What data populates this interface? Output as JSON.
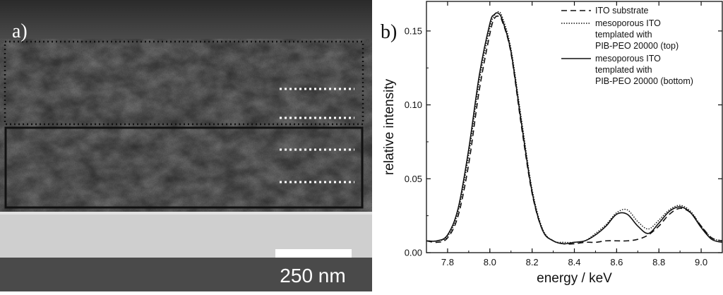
{
  "panel_a": {
    "label": "a)",
    "scale_bar_label": "250 nm"
  },
  "panel_b": {
    "label": "b)"
  },
  "chart_data": {
    "type": "line",
    "xlabel": "energy / keV",
    "ylabel": "relative intensity",
    "xlim": [
      7.7,
      9.1
    ],
    "ylim": [
      0.0,
      0.17
    ],
    "xticks": [
      "7.8",
      "8.0",
      "8.2",
      "8.4",
      "8.6",
      "8.8",
      "9.0"
    ],
    "yticks": [
      "0.00",
      "0.05",
      "0.10",
      "0.15"
    ],
    "legend_position": "top-right",
    "series": [
      {
        "name": "ITO substrate",
        "style": "dashed",
        "x": [
          7.7,
          7.75,
          7.8,
          7.85,
          7.9,
          7.95,
          8.0,
          8.02,
          8.04,
          8.06,
          8.1,
          8.15,
          8.2,
          8.25,
          8.3,
          8.35,
          8.4,
          8.45,
          8.5,
          8.55,
          8.6,
          8.65,
          8.7,
          8.75,
          8.8,
          8.85,
          8.9,
          8.95,
          9.0,
          9.05,
          9.1
        ],
        "y": [
          0.008,
          0.007,
          0.01,
          0.025,
          0.06,
          0.11,
          0.148,
          0.158,
          0.16,
          0.156,
          0.135,
          0.085,
          0.04,
          0.015,
          0.008,
          0.006,
          0.006,
          0.007,
          0.007,
          0.008,
          0.008,
          0.008,
          0.009,
          0.012,
          0.018,
          0.026,
          0.03,
          0.027,
          0.018,
          0.01,
          0.008
        ]
      },
      {
        "name": "mesoporous ITO templated with PIB-PEO 20000 (top)",
        "style": "dotted",
        "x": [
          7.7,
          7.75,
          7.8,
          7.85,
          7.9,
          7.95,
          8.0,
          8.02,
          8.04,
          8.06,
          8.1,
          8.15,
          8.2,
          8.25,
          8.3,
          8.35,
          8.4,
          8.45,
          8.5,
          8.55,
          8.6,
          8.65,
          8.7,
          8.75,
          8.8,
          8.85,
          8.9,
          8.95,
          9.0,
          9.05,
          9.1
        ],
        "y": [
          0.008,
          0.008,
          0.011,
          0.028,
          0.066,
          0.116,
          0.152,
          0.16,
          0.163,
          0.159,
          0.138,
          0.09,
          0.043,
          0.016,
          0.008,
          0.007,
          0.007,
          0.008,
          0.013,
          0.019,
          0.027,
          0.029,
          0.021,
          0.016,
          0.022,
          0.029,
          0.032,
          0.028,
          0.018,
          0.01,
          0.008
        ]
      },
      {
        "name": "mesoporous ITO templated with PIB-PEO 20000 (bottom)",
        "style": "solid",
        "x": [
          7.7,
          7.75,
          7.8,
          7.85,
          7.9,
          7.95,
          8.0,
          8.02,
          8.04,
          8.06,
          8.1,
          8.15,
          8.2,
          8.25,
          8.3,
          8.35,
          8.4,
          8.45,
          8.5,
          8.55,
          8.6,
          8.65,
          8.7,
          8.75,
          8.8,
          8.85,
          8.9,
          8.95,
          9.0,
          9.05,
          9.1
        ],
        "y": [
          0.008,
          0.008,
          0.012,
          0.03,
          0.07,
          0.12,
          0.155,
          0.161,
          0.162,
          0.157,
          0.136,
          0.087,
          0.041,
          0.015,
          0.008,
          0.006,
          0.007,
          0.008,
          0.012,
          0.018,
          0.026,
          0.026,
          0.018,
          0.013,
          0.02,
          0.028,
          0.031,
          0.027,
          0.017,
          0.009,
          0.007
        ]
      }
    ],
    "legend": [
      {
        "style": "dashed",
        "lines": [
          "ITO substrate"
        ]
      },
      {
        "style": "dotted",
        "lines": [
          "mesoporous ITO",
          "templated with",
          "PIB-PEO 20000 (top)"
        ]
      },
      {
        "style": "solid",
        "lines": [
          "mesoporous ITO",
          "templated with",
          "PIB-PEO 20000 (bottom)"
        ]
      }
    ]
  }
}
